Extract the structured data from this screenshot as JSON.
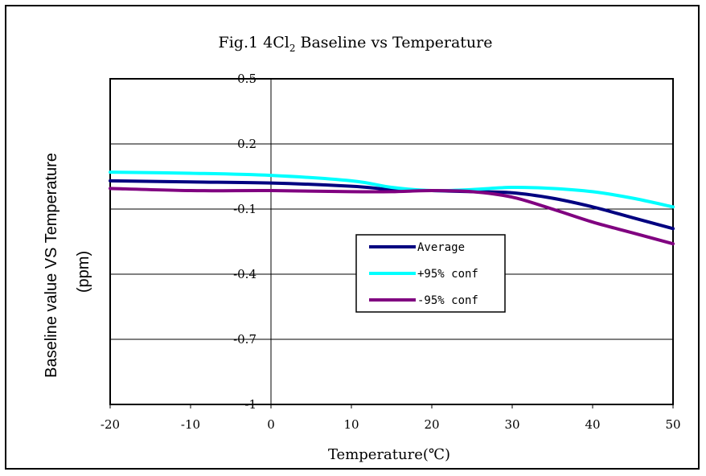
{
  "chart_data": {
    "type": "line",
    "title_main": "Fig.1  4Cl",
    "title_sub": "2",
    "title_rest": " Baseline vs Temperature",
    "xlabel": "Temperature(℃)",
    "ylabel_line1": "Baseline value VS Temperature",
    "ylabel_line2": "(ppm)",
    "xlim": [
      -20,
      50
    ],
    "ylim": [
      -1,
      0.5
    ],
    "x_ticks": [
      -20,
      -10,
      0,
      10,
      20,
      30,
      40,
      50
    ],
    "y_ticks": [
      -1,
      -0.7,
      -0.4,
      -0.1,
      0.2,
      0.5
    ],
    "y_tick_labels": [
      "-1",
      "-0.7",
      "-0.4",
      "-0.1",
      "0.2",
      "0.5"
    ],
    "grid": "horizontal",
    "legend_position": "center-right",
    "series": [
      {
        "name": "Average",
        "color": "#000080",
        "x": [
          -20,
          -10,
          0,
          10,
          15,
          20,
          25,
          30,
          35,
          40,
          45,
          50
        ],
        "y": [
          0.03,
          0.025,
          0.02,
          0.005,
          -0.01,
          -0.015,
          -0.02,
          -0.025,
          -0.05,
          -0.09,
          -0.14,
          -0.19
        ]
      },
      {
        "name": "+95% conf",
        "color": "#00FFFF",
        "x": [
          -20,
          -10,
          0,
          10,
          15,
          20,
          25,
          30,
          35,
          40,
          45,
          50
        ],
        "y": [
          0.07,
          0.065,
          0.055,
          0.03,
          0.0,
          -0.015,
          -0.01,
          0.0,
          -0.005,
          -0.02,
          -0.05,
          -0.09
        ]
      },
      {
        "name": "-95% conf",
        "color": "#800080",
        "x": [
          -20,
          -10,
          0,
          10,
          15,
          20,
          25,
          30,
          35,
          40,
          45,
          50
        ],
        "y": [
          -0.005,
          -0.015,
          -0.015,
          -0.02,
          -0.02,
          -0.015,
          -0.02,
          -0.045,
          -0.1,
          -0.16,
          -0.21,
          -0.26
        ]
      }
    ]
  }
}
